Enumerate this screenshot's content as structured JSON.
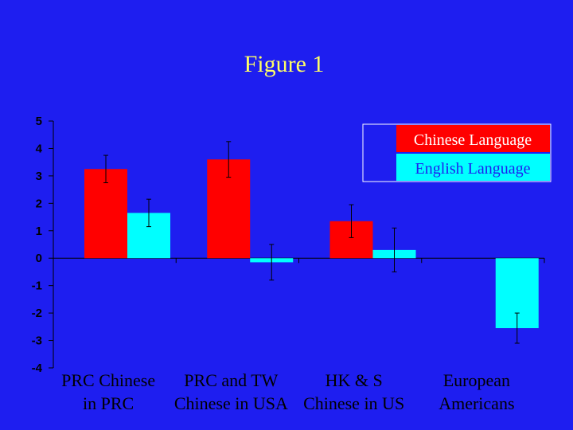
{
  "chart_data": {
    "type": "bar",
    "title": "Figure 1",
    "categories": [
      [
        "PRC Chinese",
        "in PRC"
      ],
      [
        "PRC and TW",
        "Chinese in USA"
      ],
      [
        "HK & S",
        "Chinese in US"
      ],
      [
        "European",
        "Americans"
      ]
    ],
    "series": [
      {
        "name": "Chinese Language",
        "color": "#ff0000",
        "values": [
          3.25,
          3.6,
          1.35,
          null
        ],
        "error": [
          0.5,
          0.65,
          0.6,
          null
        ]
      },
      {
        "name": "English Language",
        "color": "#00ffff",
        "values": [
          1.65,
          -0.15,
          0.3,
          -2.55
        ],
        "error": [
          0.5,
          0.65,
          0.8,
          0.55
        ]
      }
    ],
    "ylim": [
      -4,
      5
    ],
    "yticks": [
      "5",
      "4",
      "3",
      "2",
      "1",
      "0",
      "-1",
      "-2",
      "-3",
      "-4"
    ],
    "grid": false,
    "legend_position": "top-right",
    "xlabel": "",
    "ylabel": ""
  }
}
